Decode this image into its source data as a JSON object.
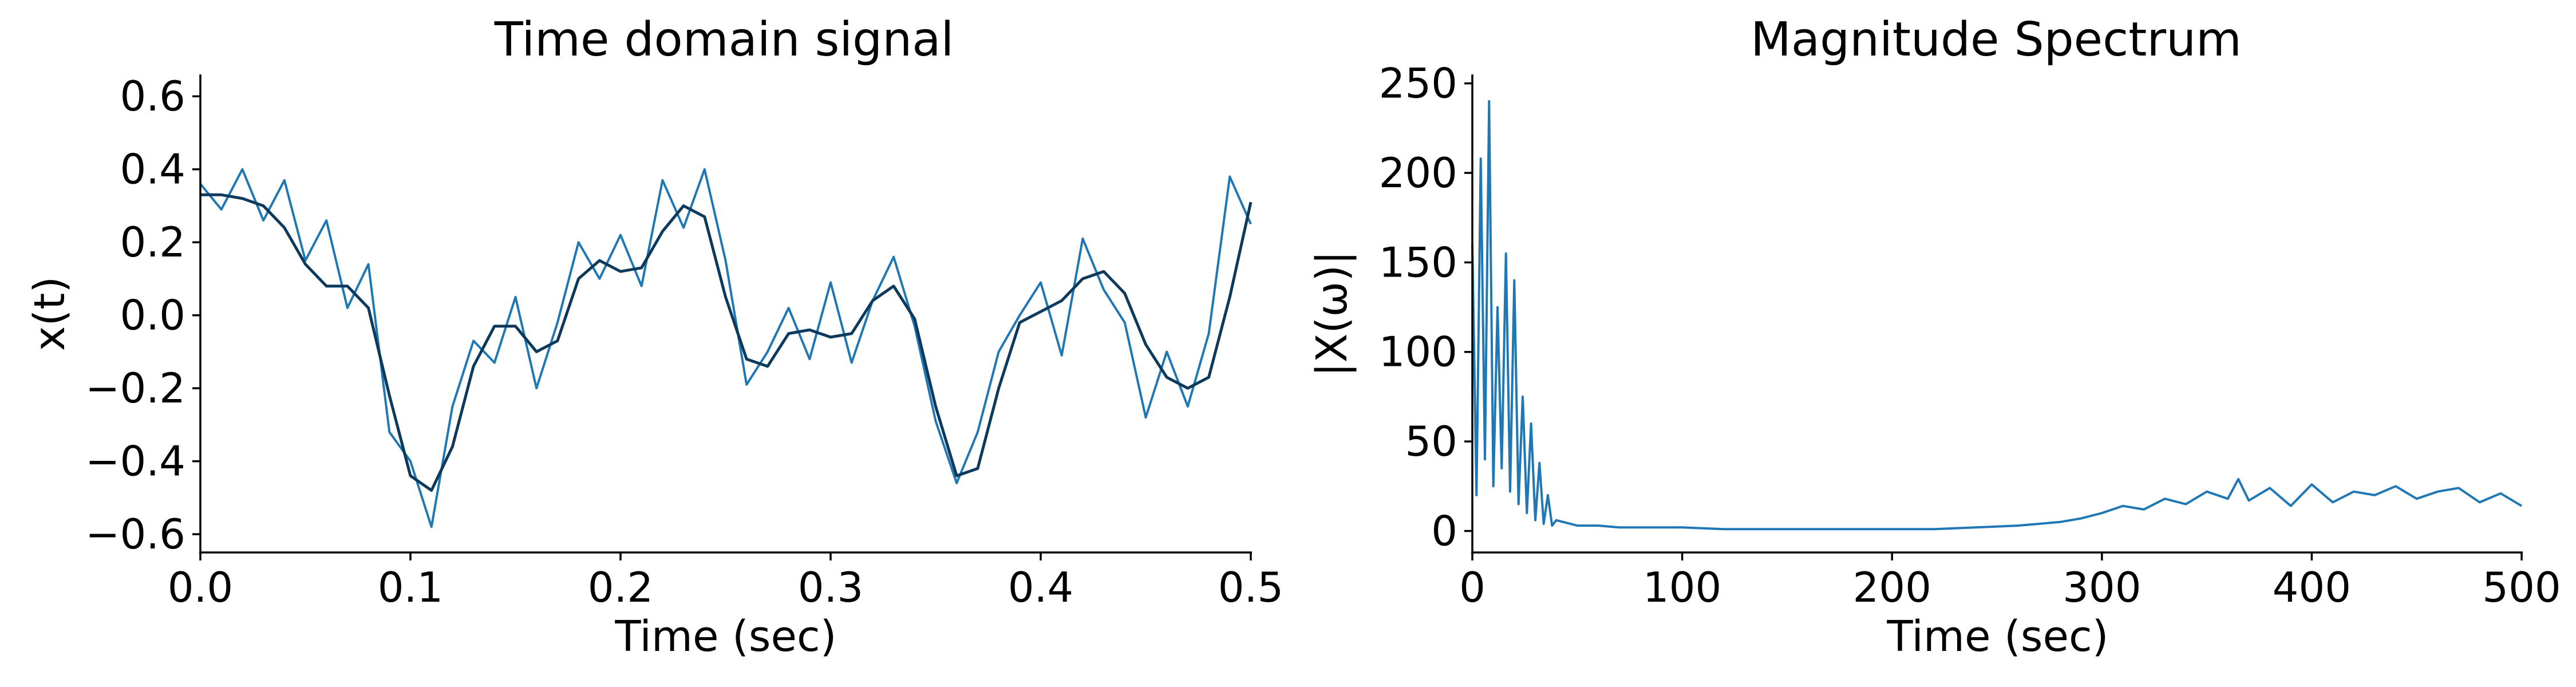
{
  "colors": {
    "signal": "#1f77b4",
    "smooth": "#0d3a5c",
    "axes": "#000000",
    "background": "#ffffff"
  },
  "chart_data": [
    {
      "type": "line",
      "title": "Time domain signal",
      "xlabel": "Time (sec)",
      "ylabel": "x(t)",
      "xlim": [
        0.0,
        0.5
      ],
      "ylim": [
        -0.65,
        0.66
      ],
      "xticks": [
        0.0,
        0.1,
        0.2,
        0.3,
        0.4,
        0.5
      ],
      "xtick_labels": [
        "0.0",
        "0.1",
        "0.2",
        "0.3",
        "0.4",
        "0.5"
      ],
      "yticks": [
        -0.6,
        -0.4,
        -0.2,
        0.0,
        0.2,
        0.4,
        0.6
      ],
      "ytick_labels": [
        "−0.6",
        "−0.4",
        "−0.2",
        "0.0",
        "0.2",
        "0.4",
        "0.6"
      ],
      "grid": false,
      "series": [
        {
          "role": "noisy",
          "x": [
            0.0,
            0.01,
            0.02,
            0.03,
            0.04,
            0.05,
            0.06,
            0.07,
            0.08,
            0.09,
            0.1,
            0.11,
            0.12,
            0.13,
            0.14,
            0.15,
            0.16,
            0.17,
            0.18,
            0.19,
            0.2,
            0.21,
            0.22,
            0.23,
            0.24,
            0.25,
            0.26,
            0.27,
            0.28,
            0.29,
            0.3,
            0.31,
            0.32,
            0.33,
            0.34,
            0.35,
            0.36,
            0.37,
            0.38,
            0.39,
            0.4,
            0.41,
            0.42,
            0.43,
            0.44,
            0.45,
            0.46,
            0.47,
            0.48,
            0.49,
            0.5
          ],
          "values": [
            0.36,
            0.29,
            0.4,
            0.26,
            0.37,
            0.15,
            0.26,
            0.02,
            0.14,
            -0.32,
            -0.4,
            -0.58,
            -0.25,
            -0.07,
            -0.13,
            0.05,
            -0.2,
            -0.02,
            0.2,
            0.1,
            0.22,
            0.08,
            0.37,
            0.24,
            0.4,
            0.15,
            -0.19,
            -0.1,
            0.02,
            -0.12,
            0.09,
            -0.13,
            0.04,
            0.16,
            -0.03,
            -0.29,
            -0.46,
            -0.32,
            -0.1,
            0.0,
            0.09,
            -0.11,
            0.21,
            0.07,
            -0.02,
            -0.28,
            -0.1,
            -0.25,
            -0.05,
            0.38,
            0.25
          ]
        },
        {
          "role": "smooth",
          "x": [
            0.0,
            0.01,
            0.02,
            0.03,
            0.04,
            0.05,
            0.06,
            0.07,
            0.08,
            0.09,
            0.1,
            0.11,
            0.12,
            0.13,
            0.14,
            0.15,
            0.16,
            0.17,
            0.18,
            0.19,
            0.2,
            0.21,
            0.22,
            0.23,
            0.24,
            0.25,
            0.26,
            0.27,
            0.28,
            0.29,
            0.3,
            0.31,
            0.32,
            0.33,
            0.34,
            0.35,
            0.36,
            0.37,
            0.38,
            0.39,
            0.4,
            0.41,
            0.42,
            0.43,
            0.44,
            0.45,
            0.46,
            0.47,
            0.48,
            0.49,
            0.5
          ],
          "values": [
            0.33,
            0.33,
            0.32,
            0.3,
            0.24,
            0.14,
            0.08,
            0.08,
            0.02,
            -0.22,
            -0.44,
            -0.48,
            -0.36,
            -0.14,
            -0.03,
            -0.03,
            -0.1,
            -0.07,
            0.1,
            0.15,
            0.12,
            0.13,
            0.23,
            0.3,
            0.27,
            0.05,
            -0.12,
            -0.14,
            -0.05,
            -0.04,
            -0.06,
            -0.05,
            0.04,
            0.08,
            -0.01,
            -0.25,
            -0.44,
            -0.42,
            -0.2,
            -0.02,
            0.01,
            0.04,
            0.1,
            0.12,
            0.06,
            -0.08,
            -0.17,
            -0.2,
            -0.17,
            0.05,
            0.31
          ]
        }
      ]
    },
    {
      "type": "line",
      "title": "Magnitude Spectrum",
      "xlabel": "Time (sec)",
      "ylabel": "|X(ω)|",
      "xlim": [
        0,
        500
      ],
      "ylim": [
        -12,
        255
      ],
      "xticks": [
        0,
        100,
        200,
        300,
        400,
        500
      ],
      "xtick_labels": [
        "0",
        "100",
        "200",
        "300",
        "400",
        "500"
      ],
      "yticks": [
        0,
        50,
        100,
        150,
        200,
        250
      ],
      "ytick_labels": [
        "0",
        "50",
        "100",
        "150",
        "200",
        "250"
      ],
      "grid": false,
      "series": [
        {
          "x": [
            0,
            2,
            4,
            6,
            8,
            10,
            12,
            14,
            16,
            18,
            20,
            22,
            24,
            26,
            28,
            30,
            32,
            34,
            36,
            38,
            40,
            50,
            60,
            70,
            80,
            90,
            100,
            120,
            140,
            160,
            180,
            200,
            220,
            240,
            260,
            280,
            290,
            300,
            310,
            320,
            330,
            340,
            350,
            360,
            365,
            370,
            380,
            390,
            400,
            410,
            420,
            430,
            440,
            450,
            460,
            470,
            480,
            490,
            500
          ],
          "values": [
            160,
            20,
            208,
            40,
            240,
            25,
            125,
            35,
            155,
            22,
            140,
            15,
            75,
            10,
            60,
            6,
            38,
            4,
            20,
            3,
            6,
            3,
            3,
            2,
            2,
            2,
            2,
            1,
            1,
            1,
            1,
            1,
            1,
            2,
            3,
            5,
            7,
            10,
            14,
            12,
            18,
            15,
            22,
            18,
            29,
            17,
            24,
            14,
            26,
            16,
            22,
            20,
            25,
            18,
            22,
            24,
            16,
            21,
            14
          ]
        }
      ]
    }
  ]
}
